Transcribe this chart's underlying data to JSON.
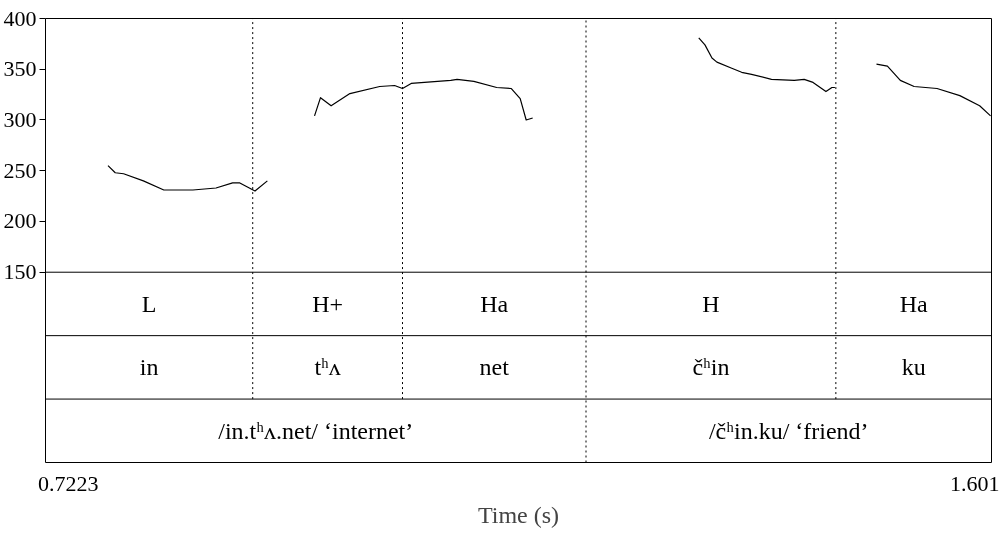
{
  "chart_data": {
    "type": "line",
    "xlabel": "Time (s)",
    "x": [
      0.7608,
      0.7678,
      0.7759,
      0.7951,
      0.8149,
      0.8431,
      0.8655,
      0.8816,
      0.8886,
      0.9033,
      0.9153,
      0.94,
      0.961,
      0.9668,
      0.9771,
      0.9953,
      1.0242,
      1.0386,
      1.0463,
      1.0547,
      1.0931,
      1.0992,
      1.1155,
      1.1376,
      1.1518,
      1.1604,
      1.1662,
      1.1725,
      1.25,
      1.3335,
      1.3395,
      1.3463,
      1.3511,
      1.3655,
      1.3751,
      1.3847,
      1.404,
      1.4261,
      1.4357,
      1.4443,
      1.4568,
      1.4626,
      1.4655,
      1.49,
      1.5058,
      1.5164,
      1.5289,
      1.5423,
      1.5645,
      1.5866,
      1.6058,
      1.6164
    ],
    "series": [
      {
        "color": "#000000",
        "values": [
          255,
          248,
          247,
          240,
          231,
          231,
          233,
          238,
          238,
          230,
          240,
          null,
          304,
          322,
          314,
          326,
          333,
          334,
          331,
          336,
          339,
          340,
          338,
          332,
          331,
          321,
          300,
          302,
          null,
          381,
          374,
          361,
          357,
          351,
          347,
          345,
          340,
          339,
          340,
          337,
          328,
          332,
          332,
          null,
          355,
          353,
          339,
          333,
          331,
          324,
          314,
          304
        ]
      }
    ],
    "xlim": [
      0.7002,
      1.6173
    ],
    "ylim": [
      -37.5,
      400
    ],
    "xticks": [
      0.7223,
      1.601
    ],
    "yticks": [
      150,
      200,
      250,
      300,
      350,
      400
    ],
    "grid": false,
    "marker": "none",
    "line_style": "solid",
    "ref_lines": [
      {
        "axis": "y",
        "value": 150,
        "line_style": "solid"
      },
      {
        "axis": "y",
        "value": 87.5,
        "line_style": "solid"
      },
      {
        "axis": "y",
        "value": 25,
        "line_style": "solid"
      },
      {
        "axis": "x",
        "value": 0.9011,
        "line_style": "dotted"
      },
      {
        "axis": "x",
        "value": 1.0463,
        "line_style": "dotted"
      },
      {
        "axis": "x",
        "value": 1.2242,
        "line_style": "dotted"
      },
      {
        "axis": "x",
        "value": 1.4664,
        "line_style": "dotted"
      }
    ],
    "annotations": [
      "L",
      "H+",
      "Ha",
      "H",
      "Ha",
      "in",
      "tʰʌ",
      "net",
      "čʰin",
      "ku",
      "/in.tʰʌ.net/ ‘internet’",
      "/čʰin.ku/ ‘friend’"
    ]
  }
}
